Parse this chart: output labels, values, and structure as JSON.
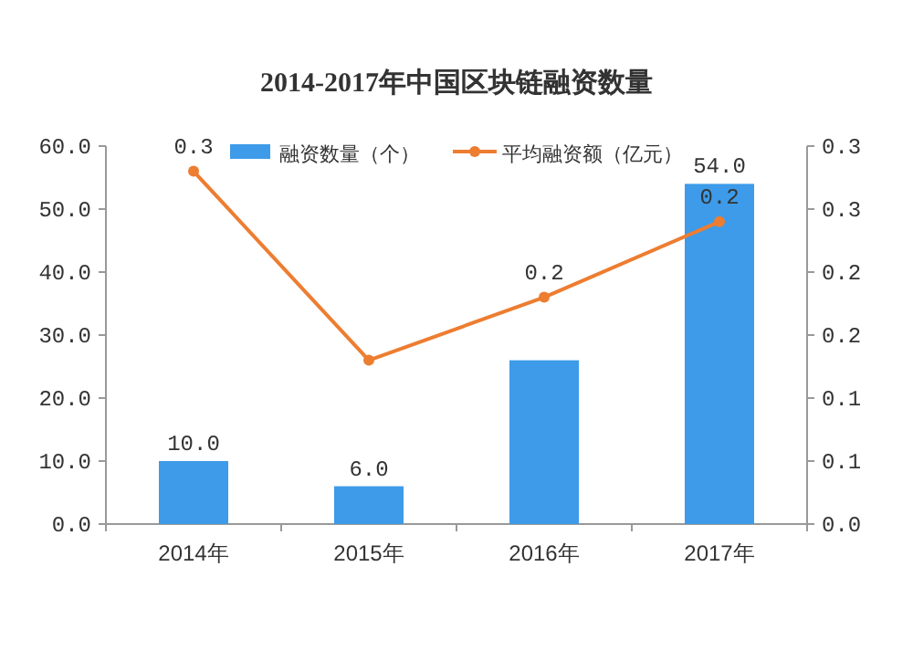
{
  "chart_data": {
    "type": "bar",
    "title": "2014-2017年中国区块链融资数量",
    "categories": [
      "2014年",
      "2015年",
      "2016年",
      "2017年"
    ],
    "series": [
      {
        "name": "融资数量（个）",
        "color": "#3d9be9",
        "values": [
          10.0,
          6.0,
          26,
          54.0
        ],
        "value_labels": [
          "10.0",
          "6.0",
          null,
          "54.0"
        ]
      },
      {
        "name": "平均融资额（亿元）",
        "type": "line",
        "axis": "y2",
        "color": "#ed7d31",
        "marker": "circle",
        "values": [
          0.28,
          0.13,
          0.18,
          0.24
        ],
        "value_labels": [
          "0.3",
          null,
          "0.2",
          "0.2"
        ]
      }
    ],
    "ylim": [
      0,
      60
    ],
    "yticks": [
      {
        "value": 0,
        "label": "0.0"
      },
      {
        "value": 10,
        "label": "10.0"
      },
      {
        "value": 20,
        "label": "20.0"
      },
      {
        "value": 30,
        "label": "30.0"
      },
      {
        "value": 40,
        "label": "40.0"
      },
      {
        "value": 50,
        "label": "50.0"
      },
      {
        "value": 60,
        "label": "60.0"
      }
    ],
    "y2lim": [
      0,
      0.3
    ],
    "y2ticks": [
      {
        "value": 0,
        "label": "0.0"
      },
      {
        "value": 0.05,
        "label": "0.1"
      },
      {
        "value": 0.1,
        "label": "0.1"
      },
      {
        "value": 0.15,
        "label": "0.2"
      },
      {
        "value": 0.2,
        "label": "0.2"
      },
      {
        "value": 0.25,
        "label": "0.3"
      },
      {
        "value": 0.3,
        "label": "0.3"
      }
    ],
    "legend": "top",
    "grid": false
  }
}
